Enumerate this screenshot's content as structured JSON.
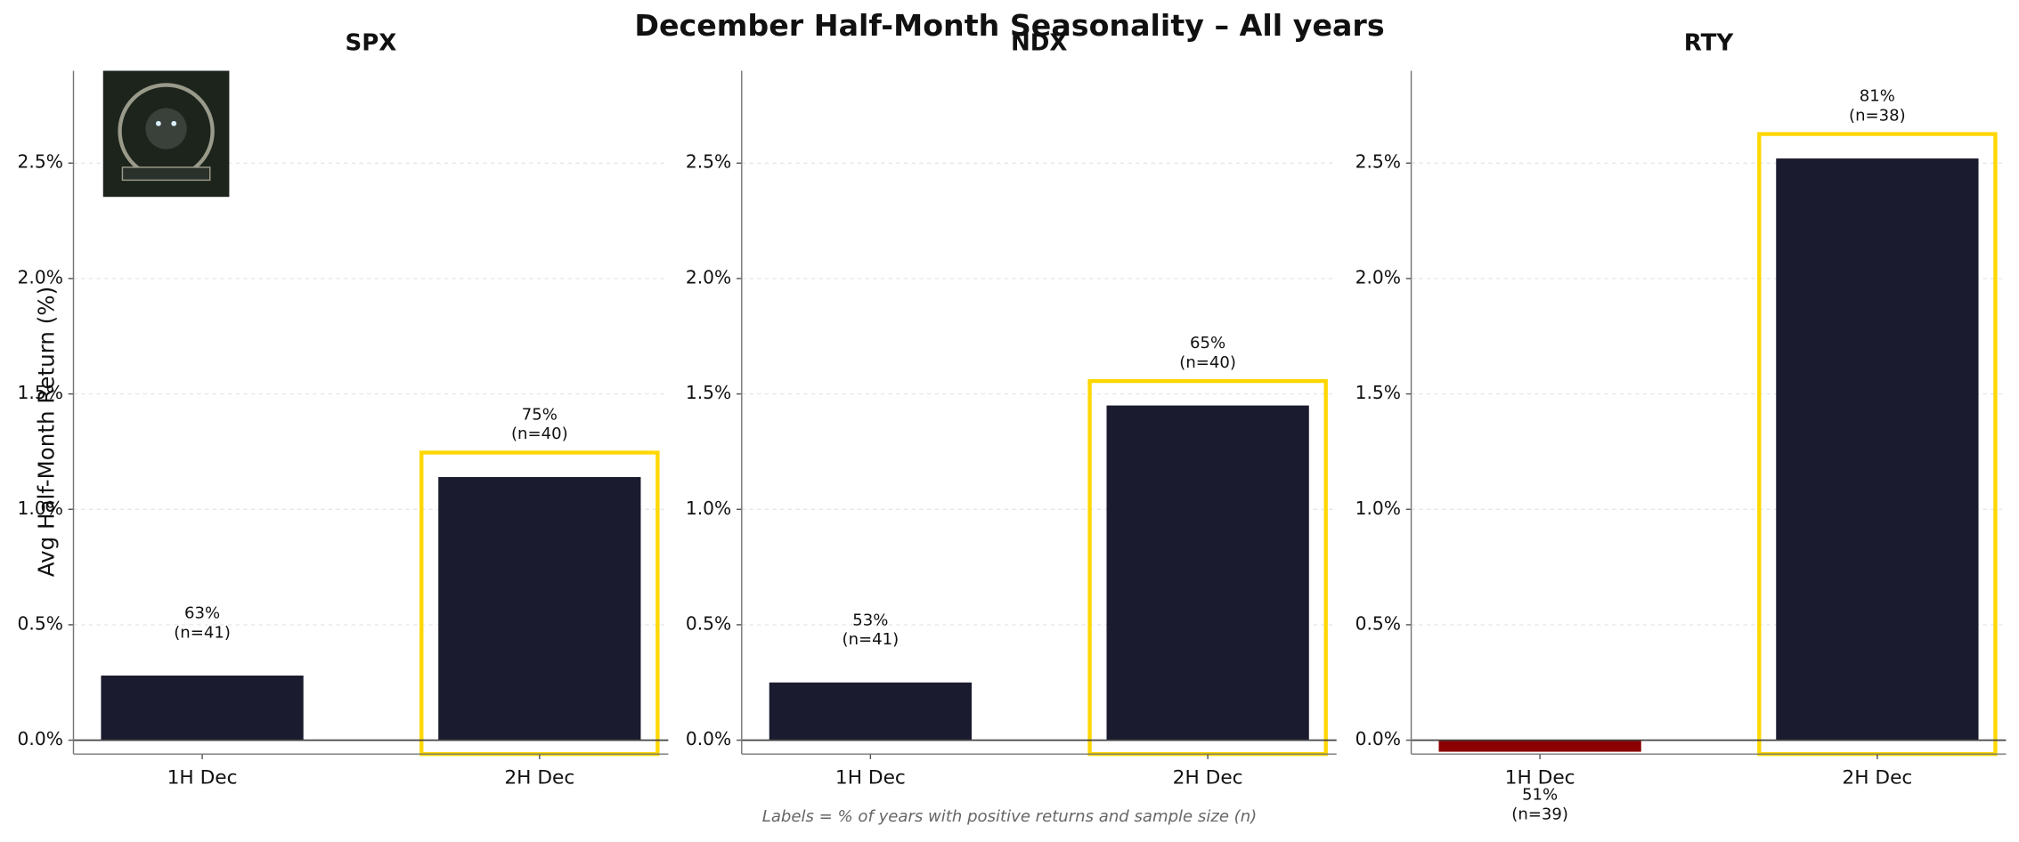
{
  "chart_data": [
    {
      "type": "bar",
      "title": "SPX",
      "categories": [
        "1H Dec",
        "2H Dec"
      ],
      "values": [
        0.28,
        1.14
      ],
      "annotations": [
        [
          "63%",
          "(n=41)"
        ],
        [
          "75%",
          "(n=40)"
        ]
      ],
      "color": "#1a1b2e",
      "negative_color": "#8b0000",
      "highlight_index": 1,
      "highlight_color": "#ffd700",
      "ylabel": "Avg Half-Month Return (%)",
      "ylim": [
        -0.06,
        2.9
      ],
      "yticks": [
        {
          "value": 0,
          "label": "0.0%"
        },
        {
          "value": 0.5,
          "label": "0.5%"
        },
        {
          "value": 1,
          "label": "1.0%"
        },
        {
          "value": 1.5,
          "label": "1.5%"
        },
        {
          "value": 2,
          "label": "2.0%"
        },
        {
          "value": 2.5,
          "label": "2.5%"
        }
      ],
      "grid": true
    },
    {
      "type": "bar",
      "title": "NDX",
      "categories": [
        "1H Dec",
        "2H Dec"
      ],
      "values": [
        0.25,
        1.45
      ],
      "annotations": [
        [
          "53%",
          "(n=41)"
        ],
        [
          "65%",
          "(n=40)"
        ]
      ],
      "color": "#1a1b2e",
      "negative_color": "#8b0000",
      "highlight_index": 1,
      "highlight_color": "#ffd700",
      "ylim": [
        -0.06,
        2.9
      ],
      "yticks": [
        {
          "value": 0,
          "label": "0.0%"
        },
        {
          "value": 0.5,
          "label": "0.5%"
        },
        {
          "value": 1,
          "label": "1.0%"
        },
        {
          "value": 1.5,
          "label": "1.5%"
        },
        {
          "value": 2,
          "label": "2.0%"
        },
        {
          "value": 2.5,
          "label": "2.5%"
        }
      ],
      "grid": true
    },
    {
      "type": "bar",
      "title": "RTY",
      "categories": [
        "1H Dec",
        "2H Dec"
      ],
      "values": [
        -0.05,
        2.52
      ],
      "annotations": [
        [
          "51%",
          "(n=39)"
        ],
        [
          "81%",
          "(n=38)"
        ]
      ],
      "color": "#1a1b2e",
      "negative_color": "#8b0000",
      "highlight_index": 1,
      "highlight_color": "#ffd700",
      "ylim": [
        -0.06,
        2.9
      ],
      "yticks": [
        {
          "value": 0,
          "label": "0.0%"
        },
        {
          "value": 0.5,
          "label": "0.5%"
        },
        {
          "value": 1,
          "label": "1.0%"
        },
        {
          "value": 1.5,
          "label": "1.5%"
        },
        {
          "value": 2,
          "label": "2.0%"
        },
        {
          "value": 2.5,
          "label": "2.5%"
        }
      ],
      "grid": true
    }
  ],
  "suptitle": "December Half-Month Seasonality – All years",
  "footnote": "Labels = % of years with positive returns and sample size (n)"
}
